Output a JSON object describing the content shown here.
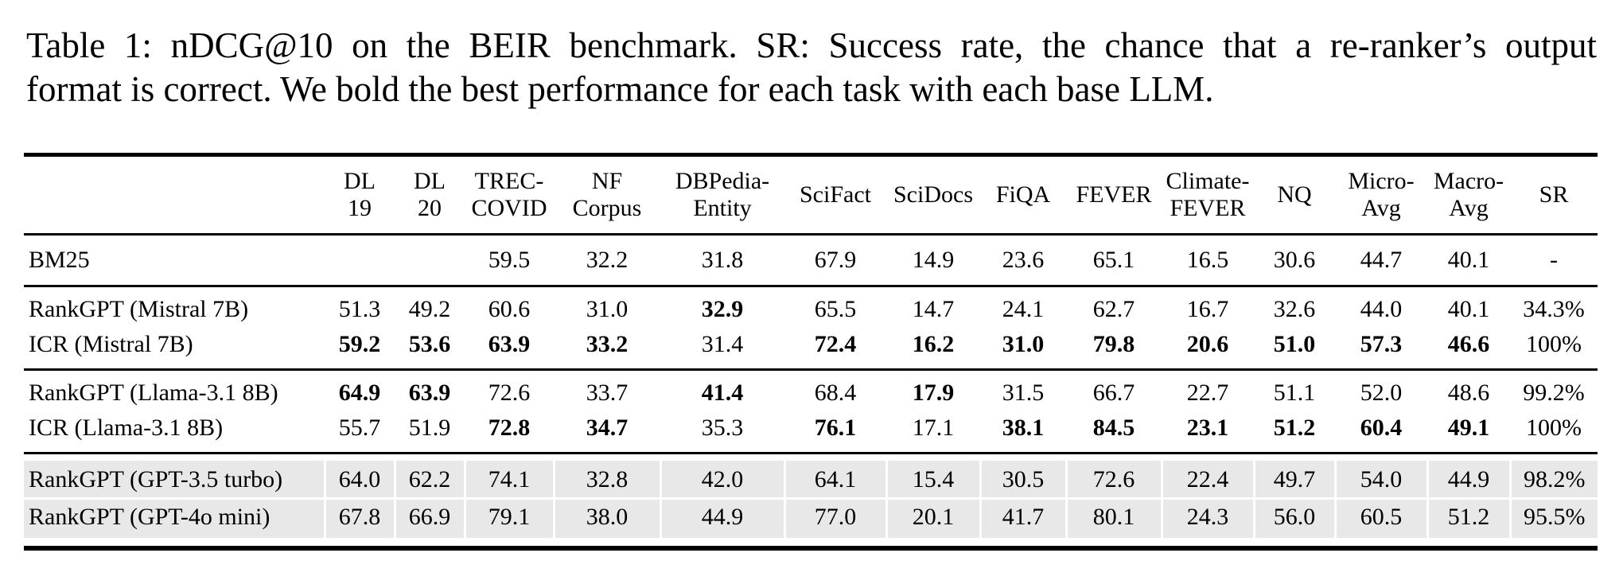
{
  "caption": {
    "line1": "Table 1: nDCG@10 on the BEIR benchmark. SR: Success rate, the chance that a re-ranker’s output",
    "line2": "format is correct. We bold the best performance for each task with each base LLM."
  },
  "colors": {
    "shaded_row_bg": "#e8e8e8",
    "rule_color": "#000000"
  },
  "table": {
    "column_headers": [
      "",
      "DL\n19",
      "DL\n20",
      "TREC-\nCOVID",
      "NF\nCorpus",
      "DBPedia-\nEntity",
      "SciFact",
      "SciDocs",
      "FiQA",
      "FEVER",
      "Climate-\nFEVER",
      "NQ",
      "Micro-\nAvg",
      "Macro-\nAvg",
      "SR"
    ],
    "rows": [
      {
        "label": "BM25",
        "flags": [
          "bm25",
          "rule"
        ],
        "values": [
          {
            "v": ""
          },
          {
            "v": ""
          },
          {
            "v": "59.5"
          },
          {
            "v": "32.2"
          },
          {
            "v": "31.8"
          },
          {
            "v": "67.9"
          },
          {
            "v": "14.9"
          },
          {
            "v": "23.6"
          },
          {
            "v": "65.1"
          },
          {
            "v": "16.5"
          },
          {
            "v": "30.6"
          },
          {
            "v": "44.7"
          },
          {
            "v": "40.1"
          },
          {
            "v": "-"
          }
        ]
      },
      {
        "label": "RankGPT (Mistral 7B)",
        "flags": [
          "pt"
        ],
        "values": [
          {
            "v": "51.3"
          },
          {
            "v": "49.2"
          },
          {
            "v": "60.6"
          },
          {
            "v": "31.0"
          },
          {
            "v": "32.9",
            "bold": true
          },
          {
            "v": "65.5"
          },
          {
            "v": "14.7"
          },
          {
            "v": "24.1"
          },
          {
            "v": "62.7"
          },
          {
            "v": "16.7"
          },
          {
            "v": "32.6"
          },
          {
            "v": "44.0"
          },
          {
            "v": "40.1"
          },
          {
            "v": "34.3%"
          }
        ]
      },
      {
        "label": "ICR (Mistral 7B)",
        "flags": [
          "pb",
          "rule"
        ],
        "values": [
          {
            "v": "59.2",
            "bold": true
          },
          {
            "v": "53.6",
            "bold": true
          },
          {
            "v": "63.9",
            "bold": true
          },
          {
            "v": "33.2",
            "bold": true
          },
          {
            "v": "31.4"
          },
          {
            "v": "72.4",
            "bold": true
          },
          {
            "v": "16.2",
            "bold": true
          },
          {
            "v": "31.0",
            "bold": true
          },
          {
            "v": "79.8",
            "bold": true
          },
          {
            "v": "20.6",
            "bold": true
          },
          {
            "v": "51.0",
            "bold": true
          },
          {
            "v": "57.3",
            "bold": true
          },
          {
            "v": "46.6",
            "bold": true
          },
          {
            "v": "100%"
          }
        ]
      },
      {
        "label": "RankGPT (Llama-3.1 8B)",
        "flags": [
          "pt"
        ],
        "values": [
          {
            "v": "64.9",
            "bold": true
          },
          {
            "v": "63.9",
            "bold": true
          },
          {
            "v": "72.6"
          },
          {
            "v": "33.7"
          },
          {
            "v": "41.4",
            "bold": true
          },
          {
            "v": "68.4"
          },
          {
            "v": "17.9",
            "bold": true
          },
          {
            "v": "31.5"
          },
          {
            "v": "66.7"
          },
          {
            "v": "22.7"
          },
          {
            "v": "51.1"
          },
          {
            "v": "52.0"
          },
          {
            "v": "48.6"
          },
          {
            "v": "99.2%"
          }
        ]
      },
      {
        "label": "ICR (Llama-3.1 8B)",
        "flags": [
          "pb",
          "rule"
        ],
        "values": [
          {
            "v": "55.7"
          },
          {
            "v": "51.9"
          },
          {
            "v": "72.8",
            "bold": true
          },
          {
            "v": "34.7",
            "bold": true
          },
          {
            "v": "35.3"
          },
          {
            "v": "76.1",
            "bold": true
          },
          {
            "v": "17.1"
          },
          {
            "v": "38.1",
            "bold": true
          },
          {
            "v": "84.5",
            "bold": true
          },
          {
            "v": "23.1",
            "bold": true
          },
          {
            "v": "51.2",
            "bold": true
          },
          {
            "v": "60.4",
            "bold": true
          },
          {
            "v": "49.1",
            "bold": true
          },
          {
            "v": "100%"
          }
        ]
      },
      {
        "label": "RankGPT (GPT-3.5 turbo)",
        "flags": [
          "shade",
          "pt"
        ],
        "values": [
          {
            "v": "64.0"
          },
          {
            "v": "62.2"
          },
          {
            "v": "74.1"
          },
          {
            "v": "32.8"
          },
          {
            "v": "42.0"
          },
          {
            "v": "64.1"
          },
          {
            "v": "15.4"
          },
          {
            "v": "30.5"
          },
          {
            "v": "72.6"
          },
          {
            "v": "22.4"
          },
          {
            "v": "49.7"
          },
          {
            "v": "54.0"
          },
          {
            "v": "44.9"
          },
          {
            "v": "98.2%"
          }
        ]
      },
      {
        "label": "RankGPT (GPT-4o mini)",
        "flags": [
          "shade",
          "pb"
        ],
        "values": [
          {
            "v": "67.8"
          },
          {
            "v": "66.9"
          },
          {
            "v": "79.1"
          },
          {
            "v": "38.0"
          },
          {
            "v": "44.9"
          },
          {
            "v": "77.0"
          },
          {
            "v": "20.1"
          },
          {
            "v": "41.7"
          },
          {
            "v": "80.1"
          },
          {
            "v": "24.3"
          },
          {
            "v": "56.0"
          },
          {
            "v": "60.5"
          },
          {
            "v": "51.2"
          },
          {
            "v": "95.5%"
          }
        ]
      }
    ]
  }
}
